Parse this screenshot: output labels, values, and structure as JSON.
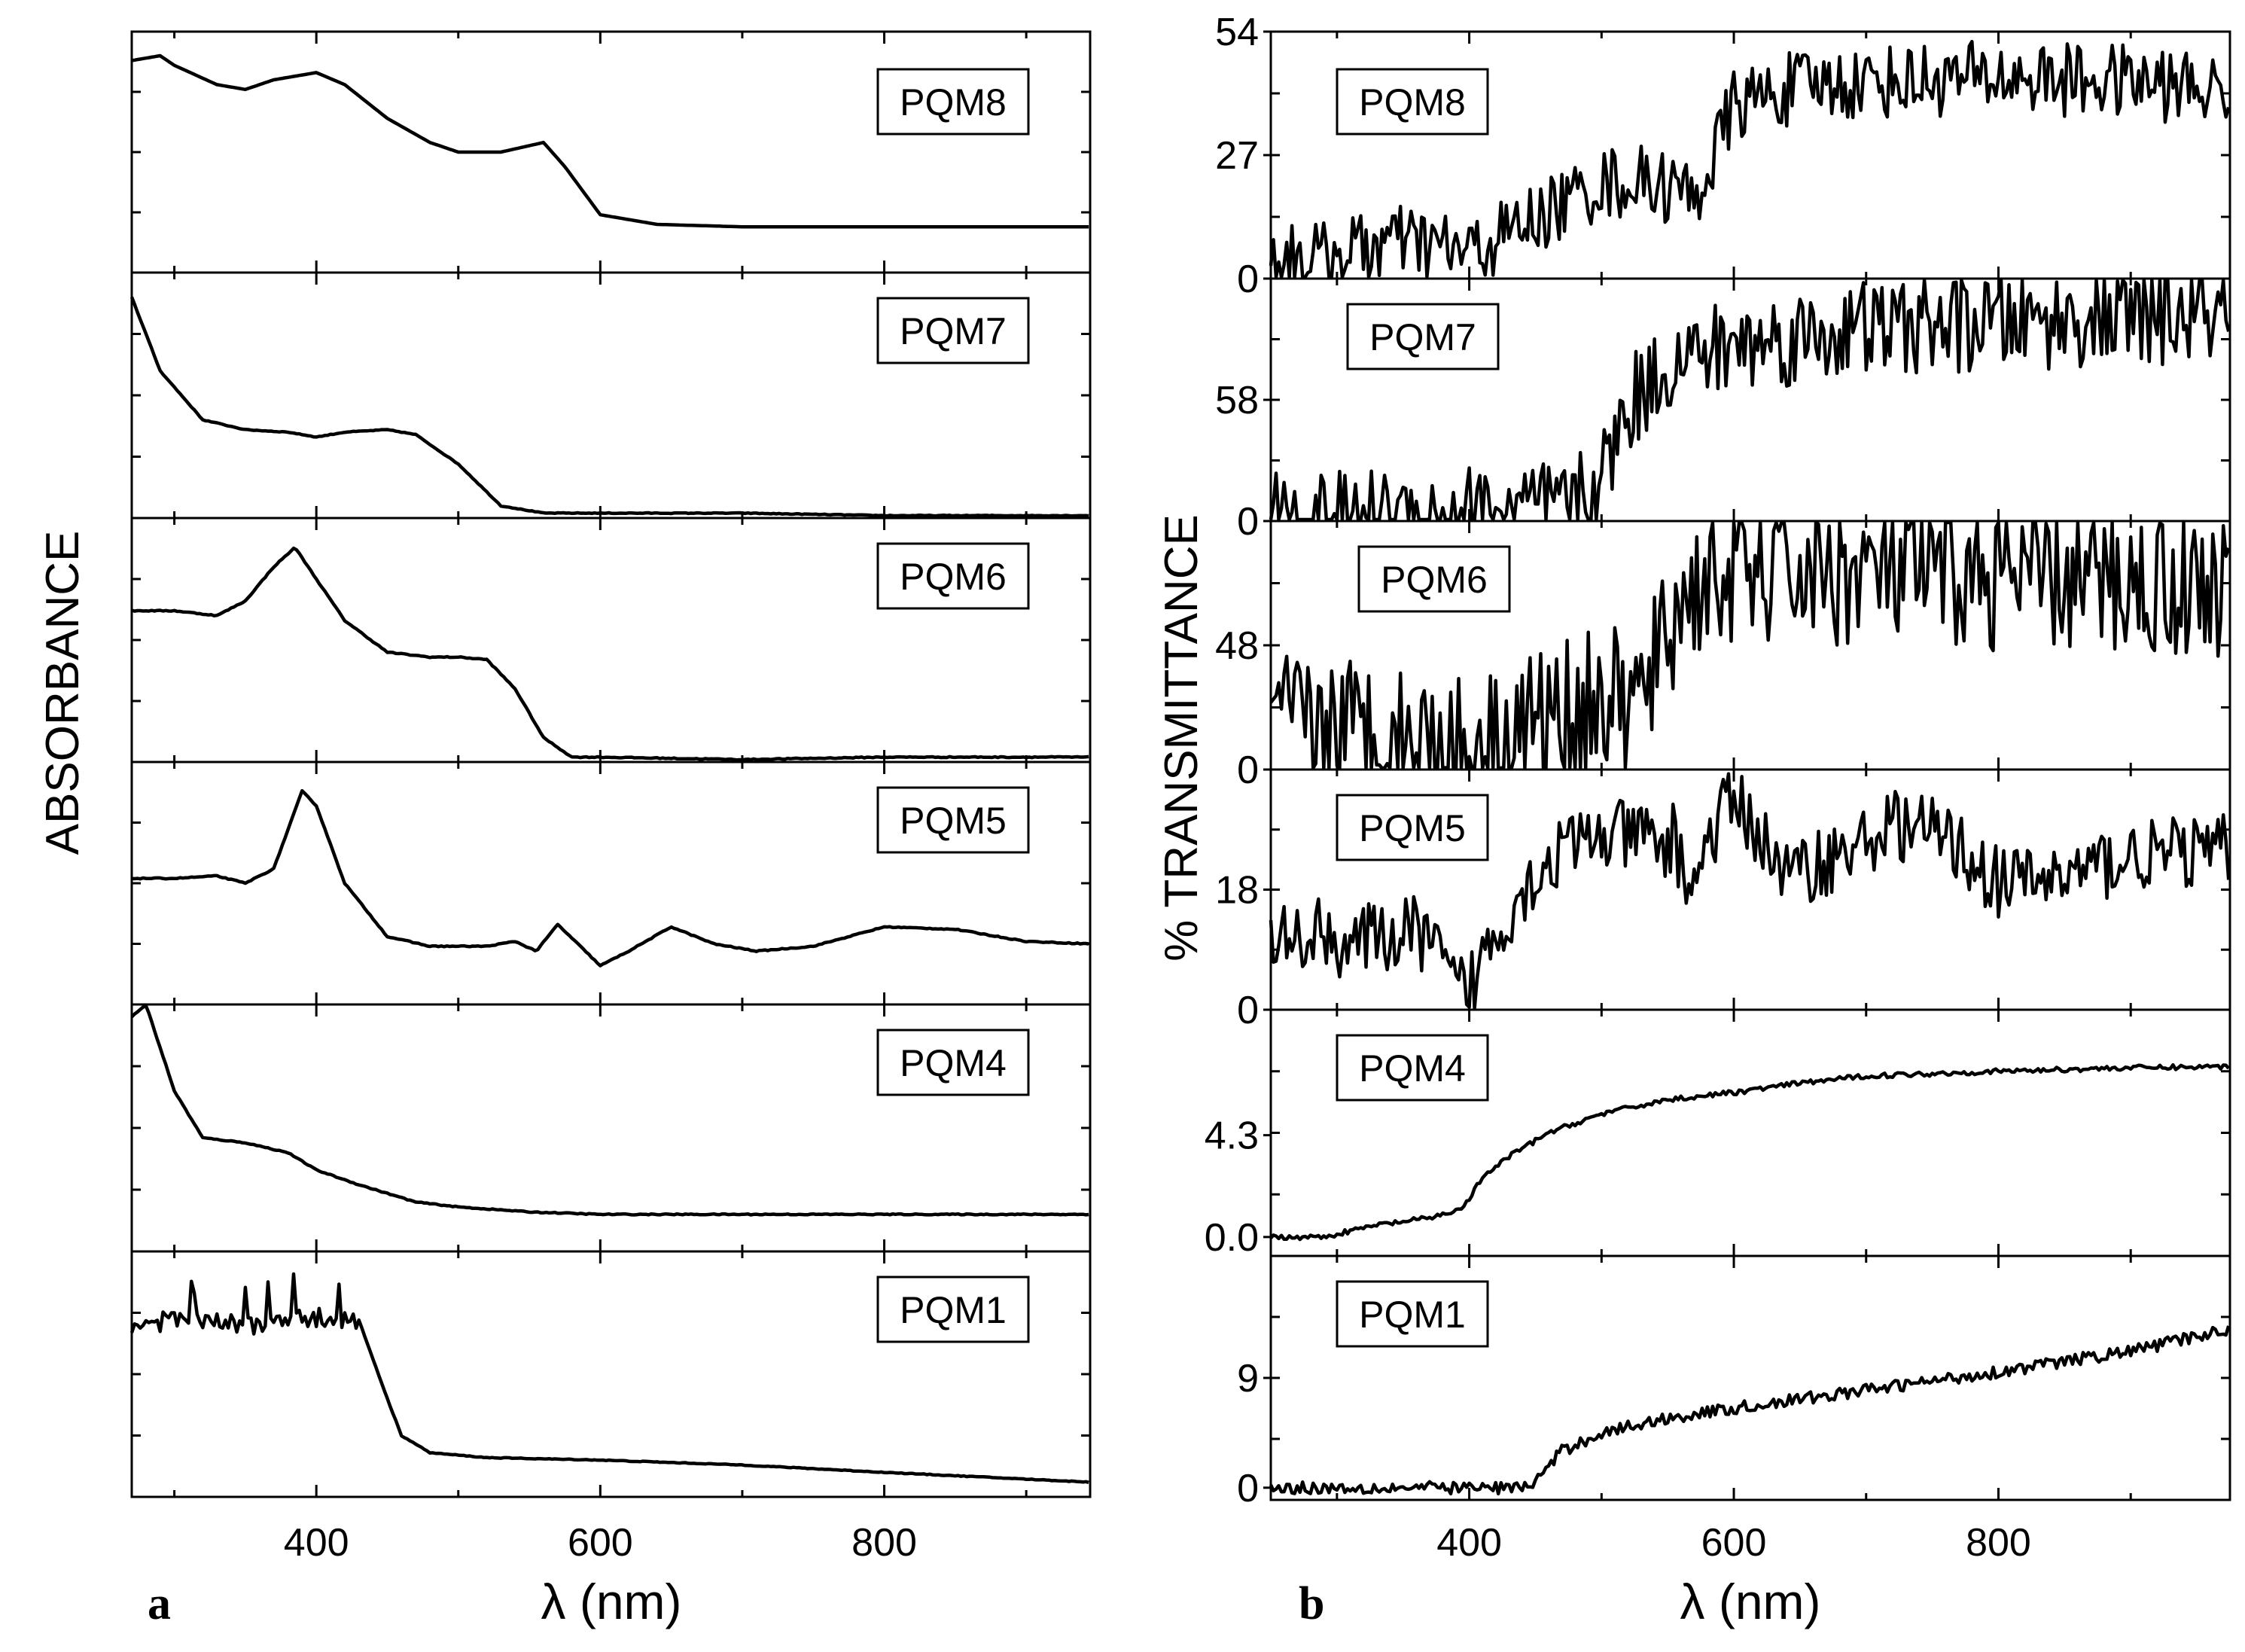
{
  "figure": {
    "left_panel_letter": "a",
    "right_panel_letter": "b"
  },
  "chart_data": [
    {
      "type": "line",
      "panel": "a",
      "ylabel": "ABSORBANCE",
      "xlabel": "λ (nm)",
      "xlim": [
        270,
        945
      ],
      "xticks": [
        400,
        600,
        800
      ],
      "color": "#000000",
      "subplots": [
        {
          "label": "PQM8",
          "ylim": [
            0,
            1
          ],
          "y_ticks": [],
          "x": [
            270,
            290,
            300,
            330,
            350,
            370,
            400,
            420,
            450,
            480,
            500,
            530,
            560,
            575,
            600,
            640,
            700,
            800,
            945
          ],
          "y": [
            0.88,
            0.9,
            0.86,
            0.78,
            0.76,
            0.8,
            0.83,
            0.78,
            0.64,
            0.54,
            0.5,
            0.5,
            0.54,
            0.44,
            0.24,
            0.2,
            0.19,
            0.19,
            0.19
          ]
        },
        {
          "label": "PQM7",
          "ylim": [
            0,
            1
          ],
          "y_ticks": [],
          "x": [
            270,
            290,
            320,
            350,
            380,
            400,
            420,
            450,
            470,
            500,
            530,
            560,
            600,
            700,
            800,
            945
          ],
          "y": [
            0.9,
            0.6,
            0.4,
            0.36,
            0.35,
            0.33,
            0.35,
            0.36,
            0.34,
            0.22,
            0.05,
            0.02,
            0.02,
            0.02,
            0.01,
            0.01
          ],
          "noise": 0.003
        },
        {
          "label": "PQM6",
          "ylim": [
            0,
            1
          ],
          "y_ticks": [],
          "x": [
            270,
            300,
            330,
            350,
            370,
            385,
            400,
            420,
            450,
            480,
            500,
            520,
            540,
            560,
            580,
            600,
            700,
            800,
            945
          ],
          "y": [
            0.62,
            0.62,
            0.6,
            0.66,
            0.8,
            0.88,
            0.75,
            0.58,
            0.45,
            0.43,
            0.43,
            0.42,
            0.3,
            0.1,
            0.02,
            0.02,
            0.01,
            0.02,
            0.02
          ],
          "noise": 0.004
        },
        {
          "label": "PQM5",
          "ylim": [
            0,
            1
          ],
          "y_ticks": [],
          "x": [
            270,
            300,
            330,
            350,
            370,
            390,
            400,
            420,
            450,
            480,
            520,
            540,
            555,
            570,
            600,
            620,
            650,
            680,
            710,
            750,
            800,
            850,
            900,
            945
          ],
          "y": [
            0.52,
            0.52,
            0.53,
            0.5,
            0.56,
            0.88,
            0.82,
            0.5,
            0.28,
            0.24,
            0.24,
            0.26,
            0.22,
            0.33,
            0.16,
            0.22,
            0.32,
            0.25,
            0.22,
            0.24,
            0.32,
            0.31,
            0.26,
            0.25
          ],
          "noise": 0.004
        },
        {
          "label": "PQM4",
          "ylim": [
            0,
            1
          ],
          "y_ticks": [],
          "x": [
            270,
            280,
            300,
            320,
            350,
            380,
            400,
            430,
            470,
            500,
            550,
            600,
            700,
            800,
            945
          ],
          "y": [
            0.95,
            1,
            0.65,
            0.46,
            0.44,
            0.4,
            0.33,
            0.27,
            0.2,
            0.18,
            0.16,
            0.15,
            0.15,
            0.15,
            0.15
          ],
          "noise": 0.004
        },
        {
          "label": "PQM1",
          "ylim": [
            0,
            1
          ],
          "y_ticks": [],
          "x": [
            270,
            300,
            350,
            400,
            430,
            450,
            460,
            480,
            520,
            600,
            700,
            800,
            945
          ],
          "y": [
            0.7,
            0.72,
            0.7,
            0.73,
            0.72,
            0.4,
            0.25,
            0.18,
            0.16,
            0.15,
            0.13,
            0.1,
            0.06
          ],
          "noise": 0.003,
          "spikes_until": 430
        }
      ]
    },
    {
      "type": "line",
      "panel": "b",
      "ylabel": "% TRANSMITTANCE",
      "xlabel": "λ (nm)",
      "xlim": [
        250,
        975
      ],
      "xticks": [
        400,
        600,
        800
      ],
      "color": "#000000",
      "subplots": [
        {
          "label": "PQM8",
          "ylim": [
            0,
            54
          ],
          "y_ticks": [
            "0",
            "27",
            "54"
          ],
          "x": [
            250,
            290,
            340,
            370,
            400,
            450,
            500,
            540,
            570,
            580,
            600,
            650,
            700,
            800,
            900,
            975
          ],
          "y": [
            5,
            4.5,
            8,
            7.5,
            5.5,
            13,
            21,
            21,
            18,
            23,
            38,
            42,
            43,
            44,
            43,
            41
          ],
          "noise": 0.3
        },
        {
          "label": "PQM7",
          "ylim": [
            0,
            116
          ],
          "y_ticks": [
            "0",
            "58"
          ],
          "x": [
            250,
            300,
            350,
            400,
            440,
            480,
            500,
            520,
            550,
            600,
            700,
            800,
            900,
            975
          ],
          "y": [
            0,
            1,
            3,
            5,
            5,
            7,
            20,
            55,
            75,
            84,
            92,
            95,
            97,
            98
          ],
          "noise": 0.4
        },
        {
          "label": "PQM6",
          "ylim": [
            0,
            96
          ],
          "y_ticks": [
            "0",
            "48"
          ],
          "x": [
            250,
            300,
            360,
            400,
            440,
            500,
            520,
            530,
            560,
            580,
            600,
            700,
            800,
            900,
            975
          ],
          "y": [
            16,
            17,
            12,
            8,
            18,
            26,
            26,
            26,
            65,
            74,
            76,
            76,
            74,
            72,
            71
          ],
          "noise": 0.6
        },
        {
          "label": "PQM5",
          "ylim": [
            0,
            36
          ],
          "y_ticks": [
            "0",
            "18"
          ],
          "x": [
            250,
            280,
            290,
            300,
            350,
            360,
            375,
            385,
            400,
            410,
            440,
            470,
            500,
            530,
            548,
            555,
            563,
            570,
            580,
            600,
            640,
            700,
            720,
            760,
            800,
            850,
            900,
            975
          ],
          "y": [
            10,
            11,
            12,
            10,
            11,
            12,
            9,
            4,
            3,
            8,
            18,
            24,
            26,
            26,
            24,
            26,
            20,
            19,
            25,
            32,
            20,
            25,
            28,
            26,
            19,
            20,
            23,
            24
          ],
          "noise": 0.3
        },
        {
          "label": "PQM4",
          "ylim": [
            -0.8,
            9.6
          ],
          "y_ticks": [
            "0.0",
            "4.3"
          ],
          "x": [
            250,
            290,
            330,
            370,
            395,
            410,
            430,
            460,
            500,
            550,
            600,
            650,
            700,
            800,
            900,
            975
          ],
          "y": [
            0,
            0,
            0.5,
            0.8,
            1.2,
            2.5,
            3.4,
            4.4,
            5.2,
            5.8,
            6.1,
            6.5,
            6.8,
            7.0,
            7.15,
            7.2
          ],
          "noise": 0.02
        },
        {
          "label": "PQM1",
          "ylim": [
            -1,
            19
          ],
          "y_ticks": [
            "0",
            "9"
          ],
          "x": [
            250,
            300,
            400,
            440,
            450,
            470,
            500,
            550,
            600,
            700,
            800,
            900,
            975
          ],
          "y": [
            0,
            0,
            0,
            0,
            0.5,
            3,
            4.5,
            5.7,
            6.5,
            8,
            9.5,
            11.2,
            13
          ],
          "noise": 0.05
        }
      ]
    }
  ]
}
